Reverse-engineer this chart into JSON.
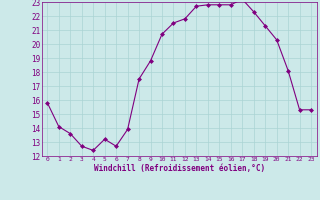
{
  "x": [
    0,
    1,
    2,
    3,
    4,
    5,
    6,
    7,
    8,
    9,
    10,
    11,
    12,
    13,
    14,
    15,
    16,
    17,
    18,
    19,
    20,
    21,
    22,
    23
  ],
  "y": [
    15.8,
    14.1,
    13.6,
    12.7,
    12.4,
    13.2,
    12.7,
    13.9,
    17.5,
    18.8,
    20.7,
    21.5,
    21.8,
    22.7,
    22.8,
    22.8,
    22.8,
    23.2,
    22.3,
    21.3,
    20.3,
    18.1,
    15.3,
    15.3
  ],
  "line_color": "#800080",
  "marker": "D",
  "marker_size": 2.0,
  "bg_color": "#cce9e9",
  "grid_color": "#aad4d4",
  "xlabel": "Windchill (Refroidissement éolien,°C)",
  "ylim": [
    12,
    23
  ],
  "xlim": [
    -0.5,
    23.5
  ],
  "yticks": [
    12,
    13,
    14,
    15,
    16,
    17,
    18,
    19,
    20,
    21,
    22,
    23
  ],
  "xticks": [
    0,
    1,
    2,
    3,
    4,
    5,
    6,
    7,
    8,
    9,
    10,
    11,
    12,
    13,
    14,
    15,
    16,
    17,
    18,
    19,
    20,
    21,
    22,
    23
  ],
  "xlabel_fontsize": 5.5,
  "ytick_fontsize": 5.5,
  "xtick_fontsize": 4.5
}
